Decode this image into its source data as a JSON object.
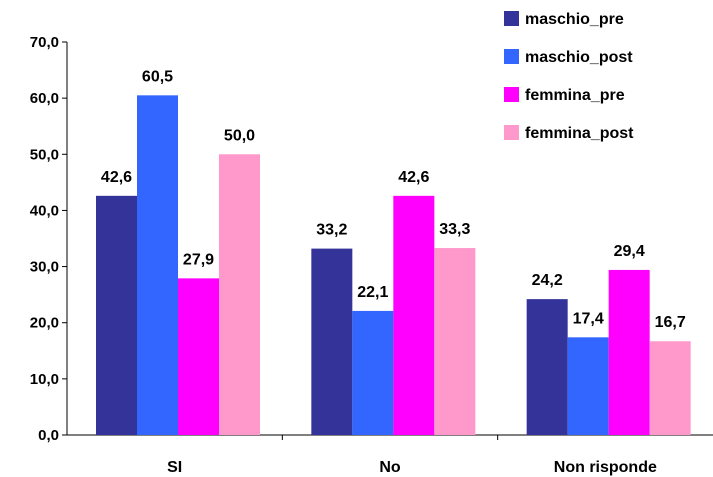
{
  "chart_data": {
    "type": "bar",
    "categories": [
      "SI",
      "No",
      "Non risponde"
    ],
    "series": [
      {
        "name": "maschio_pre",
        "values": [
          42.6,
          33.2,
          24.2
        ],
        "color": "#333399"
      },
      {
        "name": "maschio_post",
        "values": [
          60.5,
          22.1,
          17.4
        ],
        "color": "#3366FF"
      },
      {
        "name": "femmina_pre",
        "values": [
          27.9,
          42.6,
          29.4
        ],
        "color": "#FF00FF"
      },
      {
        "name": "femmina_post",
        "values": [
          50.0,
          33.3,
          16.7
        ],
        "color": "#FF99CC"
      }
    ],
    "value_labels": [
      [
        "42,6",
        "33,2",
        "24,2"
      ],
      [
        "60,5",
        "22,1",
        "17,4"
      ],
      [
        "27,9",
        "42,6",
        "29,4"
      ],
      [
        "50,0",
        "33,3",
        "16,7"
      ]
    ],
    "y_ticks": [
      "0,0",
      "10,0",
      "20,0",
      "30,0",
      "40,0",
      "50,0",
      "60,0",
      "70,0"
    ],
    "ylim": [
      0,
      70
    ],
    "y_step": 10,
    "grid": false,
    "legend_position": "top-right",
    "title": "",
    "xlabel": "",
    "ylabel": ""
  }
}
